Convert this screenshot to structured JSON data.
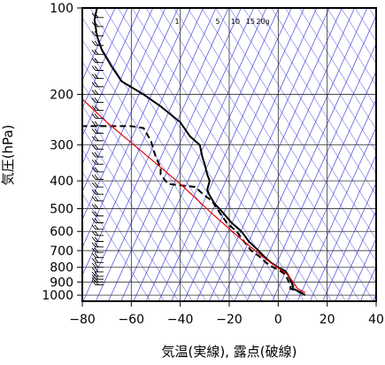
{
  "chart_data": {
    "type": "line",
    "xlabel": "気温(実線), 露点(破線)",
    "ylabel": "気圧(hPa)",
    "xlim": [
      -80,
      40
    ],
    "ylim": [
      1050,
      100
    ],
    "y_scale": "log",
    "x_ticks": [
      -80,
      -60,
      -40,
      -20,
      0,
      20,
      40
    ],
    "x_tick_labels": [
      "−80",
      "−60",
      "−40",
      "−20",
      "0",
      "20",
      "40"
    ],
    "y_ticks": [
      100,
      200,
      300,
      400,
      500,
      600,
      700,
      800,
      900,
      1000
    ],
    "y_tick_labels": [
      "100",
      "200",
      "300",
      "400",
      "500",
      "600",
      "700",
      "800",
      "900",
      "1000"
    ],
    "mixing_ratio_labels": [
      "1",
      "5",
      "10",
      "15",
      "20g"
    ],
    "mixing_ratio_values": [
      1,
      5,
      10,
      15,
      20
    ],
    "skew_lines": {
      "count": 33,
      "grid": true
    },
    "series": [
      {
        "kind": "temperature",
        "line": "solid",
        "color": "#000000",
        "points": [
          [
            11,
            1000
          ],
          [
            9,
            975
          ],
          [
            6,
            950
          ],
          [
            6,
            925
          ],
          [
            4,
            850
          ],
          [
            3,
            825
          ],
          [
            0,
            800
          ],
          [
            -3,
            770
          ],
          [
            -6,
            730
          ],
          [
            -8,
            700
          ],
          [
            -12,
            650
          ],
          [
            -15,
            600
          ],
          [
            -19,
            560
          ],
          [
            -24,
            500
          ],
          [
            -26,
            480
          ],
          [
            -28,
            450
          ],
          [
            -29,
            430
          ],
          [
            -28,
            400
          ],
          [
            -29,
            380
          ],
          [
            -30,
            350
          ],
          [
            -31,
            330
          ],
          [
            -32,
            300
          ],
          [
            -36,
            280
          ],
          [
            -40,
            250
          ],
          [
            -48,
            220
          ],
          [
            -55,
            200
          ],
          [
            -64,
            180
          ],
          [
            -68,
            160
          ],
          [
            -72,
            140
          ],
          [
            -74,
            125
          ],
          [
            -75,
            110
          ],
          [
            -74,
            100
          ]
        ]
      },
      {
        "kind": "dewpoint",
        "line": "dashed",
        "color": "#000000",
        "points": [
          [
            10,
            990
          ],
          [
            8,
            970
          ],
          [
            5,
            950
          ],
          [
            5,
            925
          ],
          [
            3,
            850
          ],
          [
            1,
            825
          ],
          [
            -2,
            800
          ],
          [
            -5,
            770
          ],
          [
            -8,
            730
          ],
          [
            -11,
            700
          ],
          [
            -14,
            650
          ],
          [
            -17,
            600
          ],
          [
            -21,
            560
          ],
          [
            -25,
            500
          ],
          [
            -27,
            470
          ],
          [
            -30,
            450
          ],
          [
            -34,
            420
          ],
          [
            -45,
            410
          ],
          [
            -48,
            380
          ],
          [
            -48,
            360
          ],
          [
            -50,
            330
          ],
          [
            -51,
            310
          ],
          [
            -52,
            290
          ],
          [
            -55,
            262
          ],
          [
            -60,
            258
          ],
          [
            -80,
            258
          ]
        ]
      },
      {
        "kind": "reference",
        "line": "solid",
        "color": "#e60000",
        "points": [
          [
            11,
            980
          ],
          [
            8,
            950
          ],
          [
            4,
            850
          ],
          [
            -5,
            750
          ],
          [
            -15,
            640
          ],
          [
            -27,
            520
          ],
          [
            -40,
            410
          ],
          [
            -55,
            320
          ],
          [
            -70,
            250
          ],
          [
            -82,
            200
          ]
        ]
      }
    ],
    "wind_barbs": [
      {
        "p": 100
      },
      {
        "p": 108
      },
      {
        "p": 116
      },
      {
        "p": 125
      },
      {
        "p": 135
      },
      {
        "p": 145
      },
      {
        "p": 155
      },
      {
        "p": 165
      },
      {
        "p": 176
      },
      {
        "p": 188
      },
      {
        "p": 200
      },
      {
        "p": 213
      },
      {
        "p": 227
      },
      {
        "p": 242
      },
      {
        "p": 257
      },
      {
        "p": 273
      },
      {
        "p": 290
      },
      {
        "p": 310
      },
      {
        "p": 330
      },
      {
        "p": 350
      },
      {
        "p": 372
      },
      {
        "p": 395
      },
      {
        "p": 420
      },
      {
        "p": 445
      },
      {
        "p": 470
      },
      {
        "p": 500
      },
      {
        "p": 530
      },
      {
        "p": 560
      },
      {
        "p": 590
      },
      {
        "p": 620
      },
      {
        "p": 650
      },
      {
        "p": 680
      },
      {
        "p": 710
      },
      {
        "p": 740
      },
      {
        "p": 770
      },
      {
        "p": 800
      },
      {
        "p": 830
      },
      {
        "p": 860
      },
      {
        "p": 880
      },
      {
        "p": 900
      },
      {
        "p": 920
      }
    ]
  }
}
